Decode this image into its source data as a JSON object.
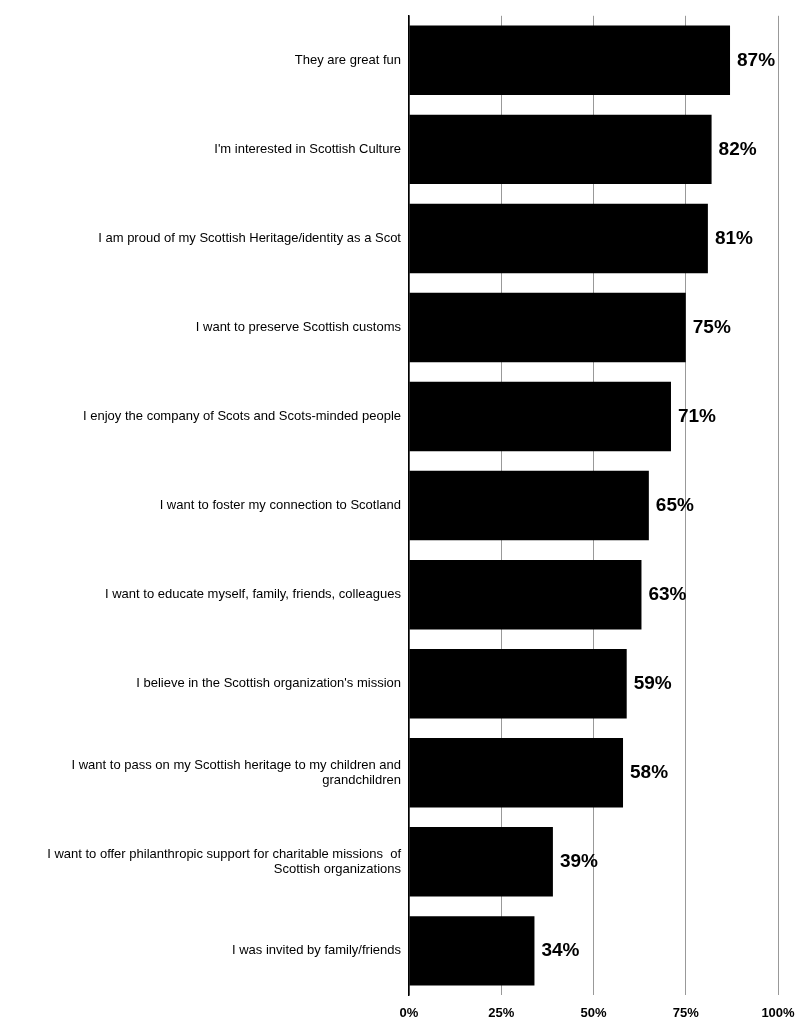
{
  "chart_data": {
    "type": "bar",
    "orientation": "horizontal",
    "categories": [
      "They are great fun",
      "I'm interested in Scottish Culture",
      "I am proud of my Scottish Heritage/identity as a Scot",
      "I want to preserve Scottish customs",
      "I enjoy the company of Scots and Scots-minded people",
      "I want to foster my connection to Scotland",
      "I want to educate myself, family, friends, colleagues",
      "I believe in the Scottish organization's mission",
      "I want to pass on my Scottish heritage to my children and grandchildren",
      "I want to offer philanthropic support for charitable missions  of Scottish organizations",
      "I was invited by family/friends"
    ],
    "values": [
      87,
      82,
      81,
      75,
      71,
      65,
      63,
      59,
      58,
      39,
      34
    ],
    "value_labels": [
      "87%",
      "82%",
      "81%",
      "75%",
      "71%",
      "65%",
      "63%",
      "59%",
      "58%",
      "39%",
      "34%"
    ],
    "color": "#000000",
    "xlim": [
      0,
      100
    ],
    "xticks": [
      {
        "value": 0,
        "label": "0%"
      },
      {
        "value": 25,
        "label": "25%"
      },
      {
        "value": 50,
        "label": "50%"
      },
      {
        "value": 75,
        "label": "75%"
      },
      {
        "value": 100,
        "label": "100%"
      }
    ],
    "grid": "x",
    "legend": false
  }
}
